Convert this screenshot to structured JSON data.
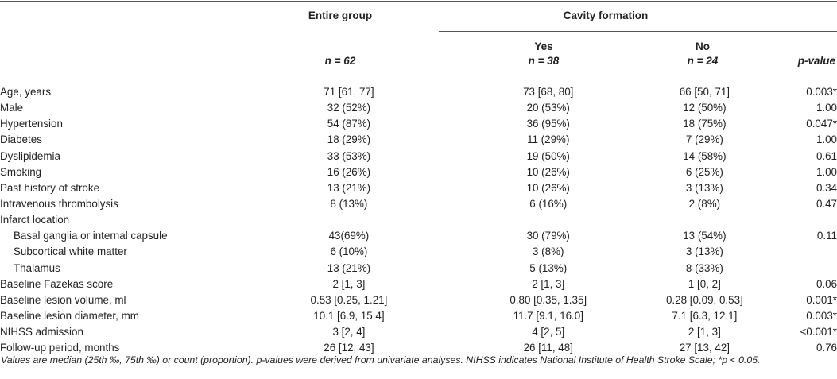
{
  "header": {
    "entire_group": "Entire group",
    "cavity_formation": "Cavity formation",
    "yes": "Yes",
    "no": "No",
    "n_entire": "n = 62",
    "n_yes": "n = 38",
    "n_no": "n = 24",
    "pvalue": "p-value"
  },
  "rows": [
    {
      "label": "Age, years",
      "sub": false,
      "entire": "71 [61, 77]",
      "yes": "73 [68, 80]",
      "no": "66 [50, 71]",
      "p": "0.003*"
    },
    {
      "label": "Male",
      "sub": false,
      "entire": "32 (52%)",
      "yes": "20 (53%)",
      "no": "12 (50%)",
      "p": "1.00"
    },
    {
      "label": "Hypertension",
      "sub": false,
      "entire": "54 (87%)",
      "yes": "36 (95%)",
      "no": "18 (75%)",
      "p": "0.047*"
    },
    {
      "label": "Diabetes",
      "sub": false,
      "entire": "18 (29%)",
      "yes": "11 (29%)",
      "no": "7 (29%)",
      "p": "1.00"
    },
    {
      "label": "Dyslipidemia",
      "sub": false,
      "entire": "33 (53%)",
      "yes": "19 (50%)",
      "no": "14 (58%)",
      "p": "0.61"
    },
    {
      "label": "Smoking",
      "sub": false,
      "entire": "16 (26%)",
      "yes": "10 (26%)",
      "no": "6 (25%)",
      "p": "1.00"
    },
    {
      "label": "Past history of stroke",
      "sub": false,
      "entire": "13 (21%)",
      "yes": "10 (26%)",
      "no": "3 (13%)",
      "p": "0.34"
    },
    {
      "label": "Intravenous thrombolysis",
      "sub": false,
      "entire": "8 (13%)",
      "yes": "6 (16%)",
      "no": "2 (8%)",
      "p": "0.47"
    },
    {
      "label": "Infarct location",
      "sub": false,
      "entire": "",
      "yes": "",
      "no": "",
      "p": ""
    },
    {
      "label": "Basal ganglia or internal capsule",
      "sub": true,
      "entire": "43(69%)",
      "yes": "30 (79%)",
      "no": "13 (54%)",
      "p": "0.11"
    },
    {
      "label": "Subcortical white matter",
      "sub": true,
      "entire": "6 (10%)",
      "yes": "3 (8%)",
      "no": "3 (13%)",
      "p": ""
    },
    {
      "label": "Thalamus",
      "sub": true,
      "entire": "13 (21%)",
      "yes": "5 (13%)",
      "no": "8 (33%)",
      "p": ""
    },
    {
      "label": "Baseline Fazekas score",
      "sub": false,
      "entire": "2 [1, 3]",
      "yes": "2 [1, 3]",
      "no": "1 [0, 2]",
      "p": "0.06"
    },
    {
      "label": "Baseline lesion volume, ml",
      "sub": false,
      "entire": "0.53 [0.25, 1.21]",
      "yes": "0.80 [0.35, 1.35]",
      "no": "0.28 [0.09, 0.53]",
      "p": "0.001*"
    },
    {
      "label": "Baseline lesion diameter, mm",
      "sub": false,
      "entire": "10.1 [6.9, 15.4]",
      "yes": "11.7 [9.1, 16.0]",
      "no": "7.1 [6.3, 12.1]",
      "p": "0.003*"
    },
    {
      "label": "NIHSS admission",
      "sub": false,
      "entire": "3 [2, 4]",
      "yes": "4 [2, 5]",
      "no": "2 [1, 3]",
      "p": "<0.001*"
    },
    {
      "label": "Follow-up period, months",
      "sub": false,
      "entire": "26 [12, 43]",
      "yes": "26 [11, 48]",
      "no": "27 [13, 42]",
      "p": "0.76"
    }
  ],
  "footnote": "Values are median (25th ‰, 75th ‰) or count (proportion). p-values were derived from univariate analyses. NIHSS indicates National Institute of Health Stroke Scale; *p < 0.05."
}
